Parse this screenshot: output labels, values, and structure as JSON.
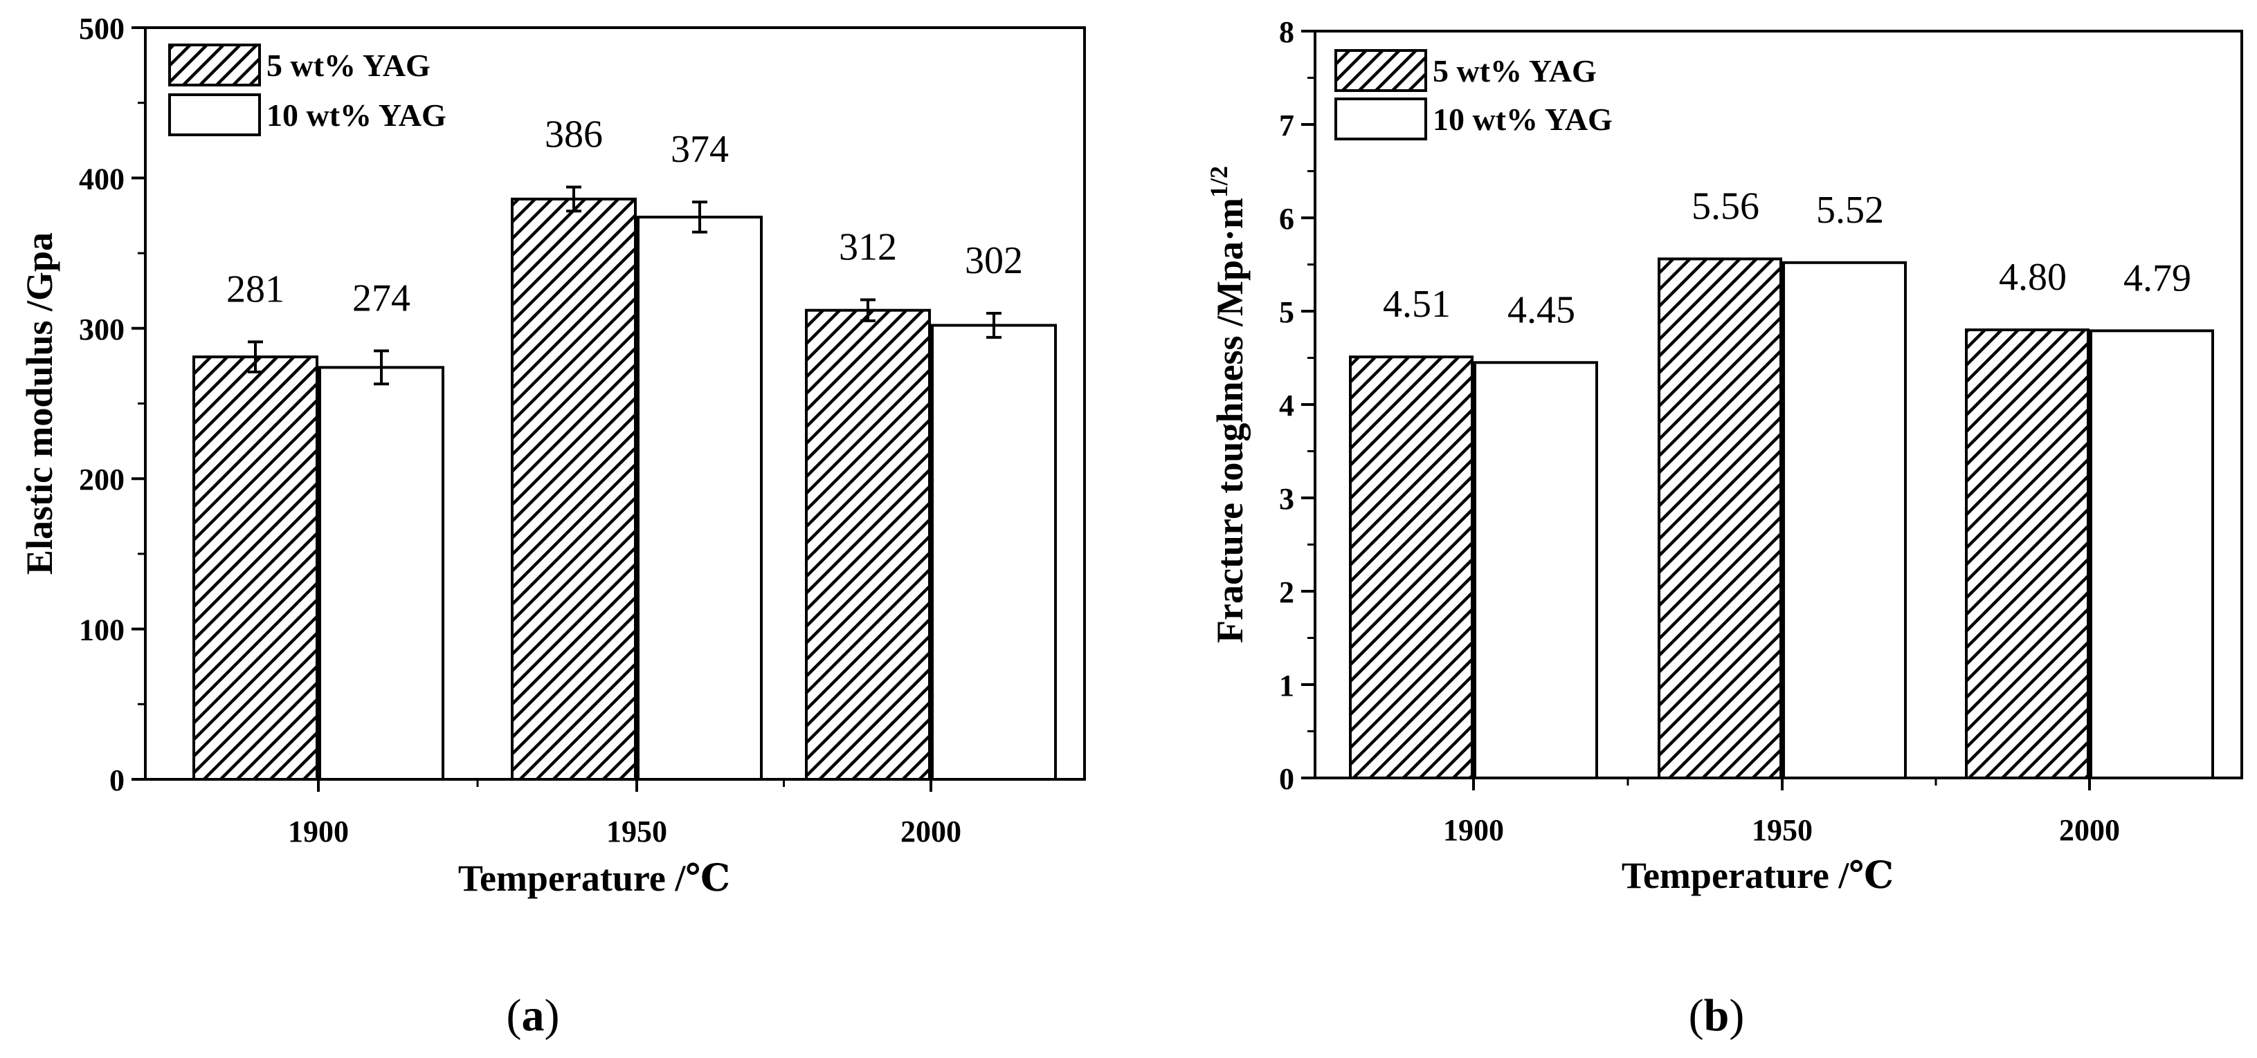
{
  "chart_data": [
    {
      "panel": "a",
      "type": "bar",
      "categories": [
        "1900",
        "1950",
        "2000"
      ],
      "series": [
        {
          "name": "5 wt% YAG",
          "values": [
            281,
            386,
            312
          ],
          "errors": [
            10,
            8,
            7
          ],
          "pattern": "hatched"
        },
        {
          "name": "10 wt% YAG",
          "values": [
            274,
            374,
            302
          ],
          "errors": [
            11,
            10,
            8
          ],
          "pattern": "open"
        }
      ],
      "value_labels": [
        [
          "281",
          "386",
          "312"
        ],
        [
          "274",
          "374",
          "302"
        ]
      ],
      "xlabel": "Temperature /℃",
      "ylabel": "Elastic modulus /Gpa",
      "ylabel_sup": "",
      "ylim": [
        0,
        500
      ],
      "yticks": [
        "0",
        "100",
        "200",
        "300",
        "400",
        "500"
      ],
      "legend_position": "top-left",
      "caption": {
        "open": "(",
        "letter": "a",
        "close": ")"
      }
    },
    {
      "panel": "b",
      "type": "bar",
      "categories": [
        "1900",
        "1950",
        "2000"
      ],
      "series": [
        {
          "name": "5 wt% YAG",
          "values": [
            4.51,
            5.56,
            4.8
          ],
          "pattern": "hatched"
        },
        {
          "name": "10 wt% YAG",
          "values": [
            4.45,
            5.52,
            4.79
          ],
          "pattern": "open"
        }
      ],
      "value_labels": [
        [
          "4.51",
          "5.56",
          "4.80"
        ],
        [
          "4.45",
          "5.52",
          "4.79"
        ]
      ],
      "xlabel": "Temperature /℃",
      "ylabel": "Fracture toughness /Mpa·m",
      "ylabel_sup": "1/2",
      "ylim": [
        0,
        8
      ],
      "yticks": [
        "0",
        "1",
        "2",
        "3",
        "4",
        "5",
        "6",
        "7",
        "8"
      ],
      "legend_position": "top-left",
      "caption": {
        "open": "(",
        "letter": "b",
        "close": ")"
      }
    }
  ]
}
